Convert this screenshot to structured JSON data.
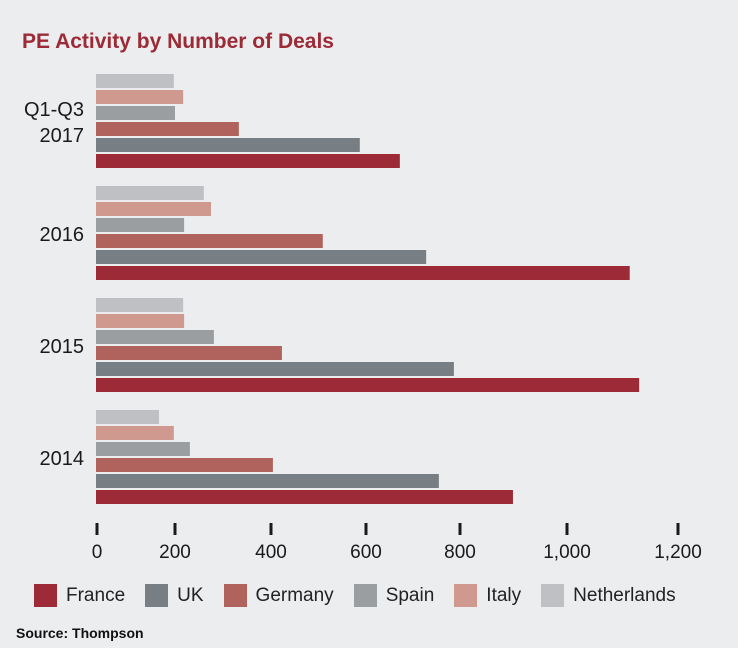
{
  "chart_data": {
    "type": "bar",
    "orientation": "horizontal",
    "title": "PE Activity by Number of Deals",
    "categories": [
      "Q1-Q3 2017",
      "2016",
      "2015",
      "2014"
    ],
    "category_lines": [
      [
        "Q1-Q3",
        "2017"
      ],
      [
        "2016"
      ],
      [
        "2015"
      ],
      [
        "2014"
      ]
    ],
    "series": [
      {
        "name": "France",
        "color": "#9c2b37",
        "values": [
          672,
          1113,
          1130,
          899
        ]
      },
      {
        "name": "UK",
        "color": "#777f85",
        "values": [
          587,
          728,
          787,
          755
        ]
      },
      {
        "name": "Germany",
        "color": "#b0625c",
        "values": [
          333,
          509,
          423,
          404
        ]
      },
      {
        "name": "Spain",
        "color": "#9a9ea1",
        "values": [
          200,
          219,
          281,
          231
        ]
      },
      {
        "name": "Italy",
        "color": "#d09990",
        "values": [
          217,
          275,
          219,
          197
        ]
      },
      {
        "name": "Netherlands",
        "color": "#bfc0c3",
        "values": [
          197,
          260,
          217,
          159
        ]
      }
    ],
    "xticks": [
      0,
      200,
      400,
      600,
      800,
      1000,
      1200
    ],
    "xtick_labels": [
      "0",
      "200",
      "400",
      "600",
      "800",
      "1,000",
      "1,200"
    ],
    "xlim": [
      0,
      1200
    ],
    "xlabel": "",
    "ylabel": "",
    "grid": false,
    "legend_position": "bottom",
    "source": "Source: Thompson"
  }
}
